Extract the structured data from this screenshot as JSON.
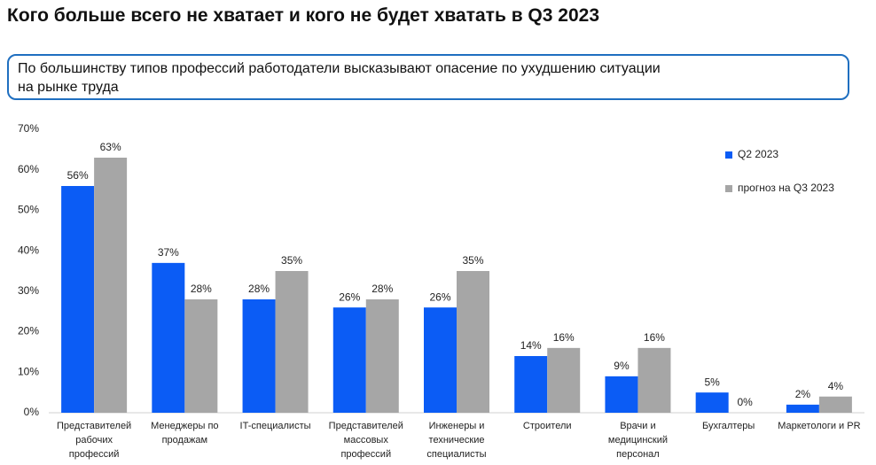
{
  "header": {
    "title": "Кого больше всего не хватает и кого не будет хватать в Q3 2023",
    "subtitle": "По большинству типов профессий работодатели высказывают опасение по ухудшению ситуации\nна рынке труда"
  },
  "chart_data": {
    "type": "bar",
    "categories": [
      "Представителей\nрабочих\nпрофессий",
      "Менеджеры по\nпродажам",
      "IT-специалисты",
      "Представителей\nмассовых\nпрофессий",
      "Инженеры и\nтехнические\nспециалисты",
      "Строители",
      "Врачи и\nмедицинский\nперсонал",
      "Бухгалтеры",
      "Маркетологи и PR"
    ],
    "series": [
      {
        "name": "Q2 2023",
        "color": "#0b5cf5",
        "values": [
          56,
          37,
          28,
          26,
          26,
          14,
          9,
          5,
          2
        ],
        "value_labels": [
          "56%",
          "37%",
          "28%",
          "26%",
          "26%",
          "14%",
          "9%",
          "5%",
          "2%"
        ]
      },
      {
        "name": "прогноз на Q3 2023",
        "color": "#a6a6a6",
        "values": [
          63,
          28,
          35,
          28,
          35,
          16,
          16,
          0,
          4
        ],
        "value_labels": [
          "63%",
          "28%",
          "35%",
          "28%",
          "35%",
          "16%",
          "16%",
          "0%",
          "4%"
        ]
      }
    ],
    "ylim": [
      0,
      70
    ],
    "yticks": [
      {
        "value": 0,
        "label": "0%"
      },
      {
        "value": 10,
        "label": "10%"
      },
      {
        "value": 20,
        "label": "20%"
      },
      {
        "value": 30,
        "label": "30%"
      },
      {
        "value": 40,
        "label": "40%"
      },
      {
        "value": 50,
        "label": "50%"
      },
      {
        "value": 60,
        "label": "60%"
      },
      {
        "value": 70,
        "label": "70%"
      }
    ],
    "legend": "right",
    "grid": false
  }
}
